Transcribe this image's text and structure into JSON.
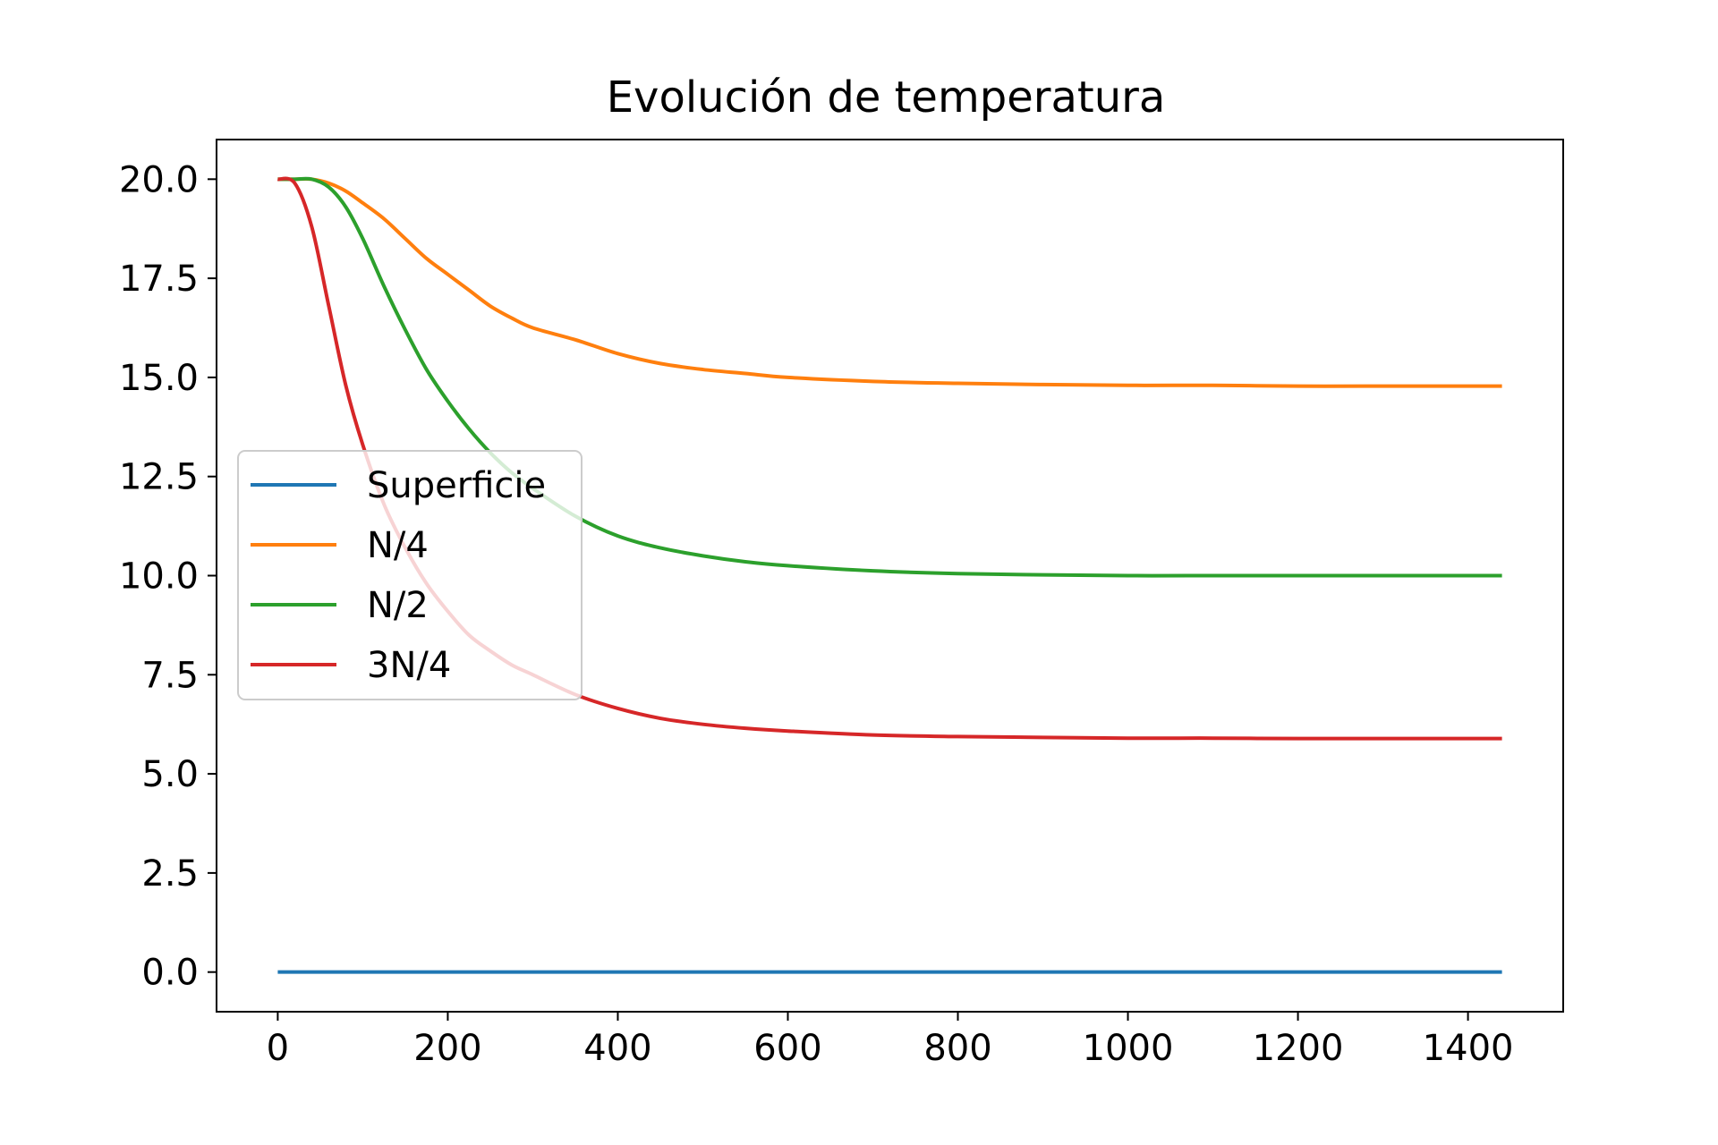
{
  "chart_data": {
    "type": "line",
    "title": "Evolución de temperatura",
    "xlabel": "",
    "ylabel": "",
    "xlim": [
      -72,
      1512
    ],
    "ylim": [
      -1.0,
      21.0
    ],
    "xticks": [
      0,
      200,
      400,
      600,
      800,
      1000,
      1200,
      1400
    ],
    "yticks": [
      0.0,
      2.5,
      5.0,
      7.5,
      10.0,
      12.5,
      15.0,
      17.5,
      20.0
    ],
    "xtick_labels": [
      "0",
      "200",
      "400",
      "600",
      "800",
      "1000",
      "1200",
      "1400"
    ],
    "ytick_labels": [
      "0.0",
      "2.5",
      "5.0",
      "7.5",
      "10.0",
      "12.5",
      "15.0",
      "17.5",
      "20.0"
    ],
    "grid": false,
    "legend_position": "center-left",
    "series": [
      {
        "name": "Superficie",
        "color": "#1f77b4",
        "x": [
          0,
          200,
          400,
          600,
          800,
          1000,
          1200,
          1440
        ],
        "y": [
          0.0,
          0.0,
          0.0,
          0.0,
          0.0,
          0.0,
          0.0,
          0.0
        ]
      },
      {
        "name": "N/4",
        "color": "#ff7f0e",
        "x": [
          0,
          20,
          40,
          60,
          80,
          100,
          125,
          150,
          175,
          200,
          225,
          250,
          275,
          300,
          350,
          400,
          450,
          500,
          550,
          600,
          700,
          800,
          900,
          1000,
          1100,
          1200,
          1300,
          1440
        ],
        "y": [
          20.0,
          20.0,
          20.0,
          19.9,
          19.7,
          19.4,
          19.0,
          18.5,
          18.0,
          17.6,
          17.2,
          16.8,
          16.5,
          16.25,
          15.95,
          15.6,
          15.35,
          15.2,
          15.1,
          15.0,
          14.9,
          14.85,
          14.82,
          14.8,
          14.8,
          14.78,
          14.78,
          14.78
        ]
      },
      {
        "name": "N/2",
        "color": "#2ca02c",
        "x": [
          0,
          20,
          40,
          60,
          80,
          100,
          125,
          150,
          175,
          200,
          225,
          250,
          275,
          300,
          350,
          400,
          450,
          500,
          550,
          600,
          700,
          800,
          900,
          1000,
          1100,
          1200,
          1300,
          1440
        ],
        "y": [
          20.0,
          20.0,
          20.0,
          19.8,
          19.3,
          18.5,
          17.3,
          16.2,
          15.2,
          14.4,
          13.7,
          13.1,
          12.6,
          12.2,
          11.5,
          11.0,
          10.7,
          10.5,
          10.35,
          10.25,
          10.12,
          10.05,
          10.02,
          10.0,
          10.0,
          10.0,
          10.0,
          10.0
        ]
      },
      {
        "name": "3N/4",
        "color": "#d62728",
        "x": [
          0,
          20,
          40,
          60,
          80,
          100,
          125,
          150,
          175,
          200,
          225,
          250,
          275,
          300,
          350,
          400,
          450,
          500,
          550,
          600,
          700,
          800,
          900,
          1000,
          1100,
          1200,
          1300,
          1440
        ],
        "y": [
          20.0,
          19.9,
          18.8,
          16.8,
          14.8,
          13.3,
          11.8,
          10.7,
          9.8,
          9.1,
          8.5,
          8.1,
          7.75,
          7.5,
          7.0,
          6.65,
          6.4,
          6.25,
          6.15,
          6.08,
          5.98,
          5.94,
          5.92,
          5.9,
          5.9,
          5.89,
          5.89,
          5.89
        ]
      }
    ]
  }
}
